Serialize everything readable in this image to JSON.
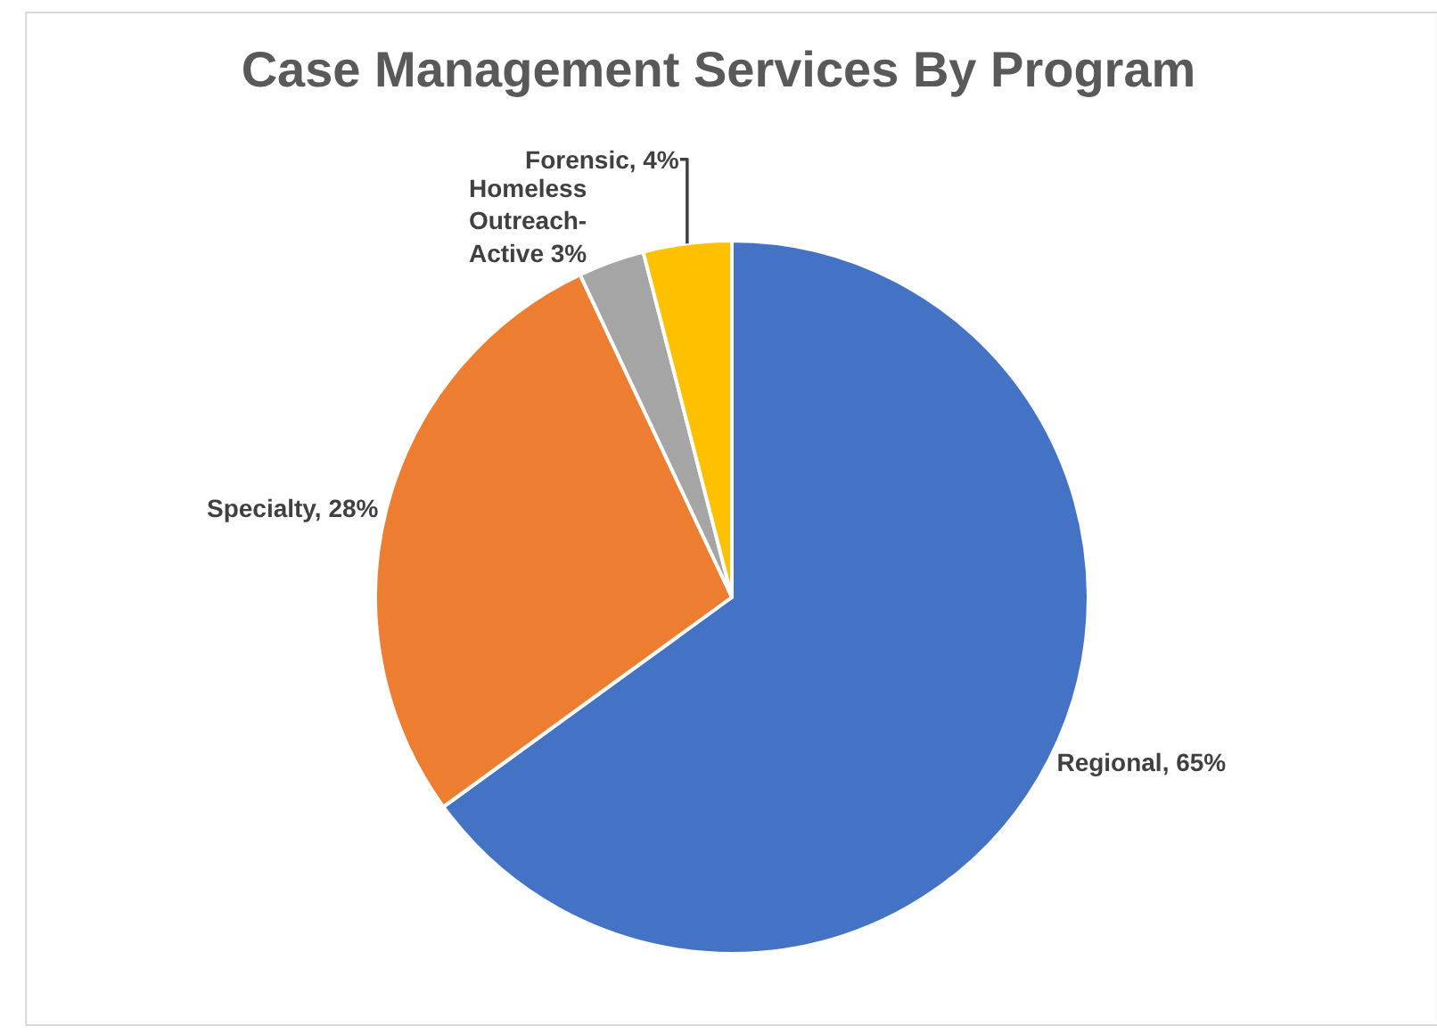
{
  "chart_data": {
    "type": "pie",
    "title": "Case Management Services By Program",
    "categories": [
      "Regional, 65%",
      "Specialty, 28%",
      "Homeless Outreach-Active 3%",
      "Forensic, 4%"
    ],
    "values": [
      65,
      28,
      3,
      4
    ],
    "colors": [
      "#4472c4",
      "#ed7d31",
      "#a5a5a5",
      "#ffc000"
    ],
    "legend": false
  }
}
